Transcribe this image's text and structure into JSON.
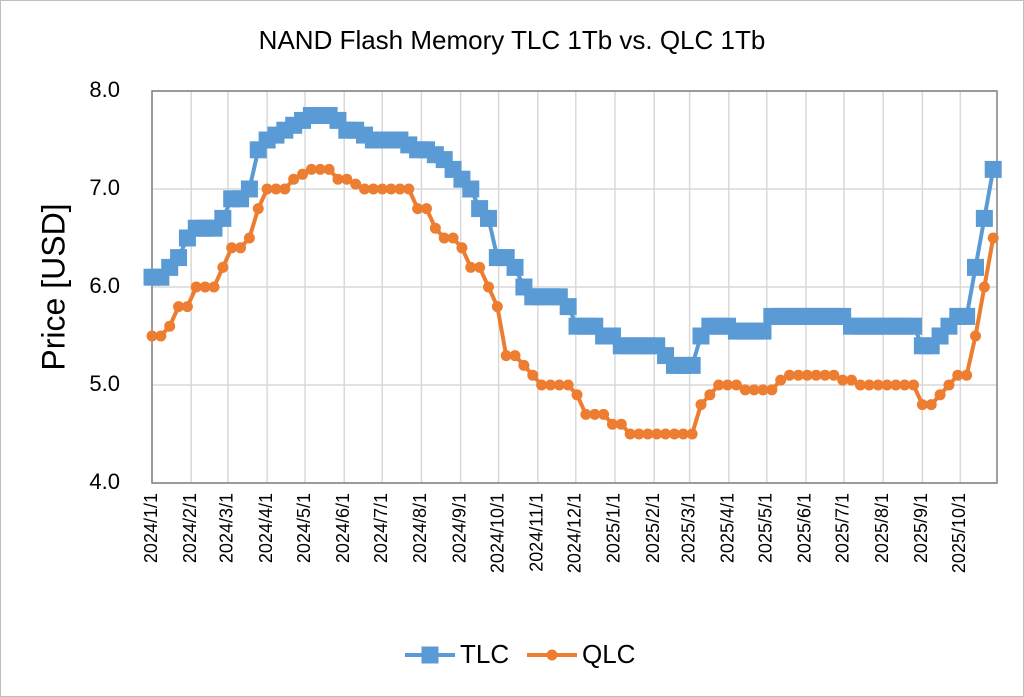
{
  "chart_data": {
    "type": "line",
    "title": "NAND Flash Memory TLC 1Tb vs. QLC 1Tb",
    "y_label": "Price [USD]",
    "x": [
      "2024/1/1",
      "2024/1/8",
      "2024/1/15",
      "2024/1/22",
      "2024/1/29",
      "2024/2/5",
      "2024/2/12",
      "2024/2/19",
      "2024/2/26",
      "2024/3/4",
      "2024/3/11",
      "2024/3/18",
      "2024/3/25",
      "2024/4/1",
      "2024/4/8",
      "2024/4/15",
      "2024/4/22",
      "2024/4/29",
      "2024/5/6",
      "2024/5/13",
      "2024/5/20",
      "2024/5/27",
      "2024/6/3",
      "2024/6/10",
      "2024/6/17",
      "2024/6/24",
      "2024/7/1",
      "2024/7/8",
      "2024/7/15",
      "2024/7/22",
      "2024/7/29",
      "2024/8/5",
      "2024/8/12",
      "2024/8/19",
      "2024/8/26",
      "2024/9/2",
      "2024/9/9",
      "2024/9/16",
      "2024/9/23",
      "2024/9/30",
      "2024/10/7",
      "2024/10/14",
      "2024/10/21",
      "2024/10/28",
      "2024/11/4",
      "2024/11/11",
      "2024/11/18",
      "2024/11/25",
      "2024/12/2",
      "2024/12/9",
      "2024/12/16",
      "2024/12/23",
      "2024/12/30",
      "2025/1/6",
      "2025/1/13",
      "2025/1/20",
      "2025/1/27",
      "2025/2/3",
      "2025/2/10",
      "2025/2/17",
      "2025/2/24",
      "2025/3/3",
      "2025/3/10",
      "2025/3/17",
      "2025/3/24",
      "2025/3/31",
      "2025/4/7",
      "2025/4/14",
      "2025/4/21",
      "2025/4/28",
      "2025/5/5",
      "2025/5/12",
      "2025/5/19",
      "2025/5/26",
      "2025/6/2",
      "2025/6/9",
      "2025/6/16",
      "2025/6/23",
      "2025/6/30",
      "2025/7/7",
      "2025/7/14",
      "2025/7/21",
      "2025/7/28",
      "2025/8/4",
      "2025/8/11",
      "2025/8/18",
      "2025/8/25",
      "2025/9/1",
      "2025/9/8",
      "2025/9/15",
      "2025/9/22",
      "2025/9/29",
      "2025/10/6",
      "2025/10/13",
      "2025/10/20",
      "2025/10/27"
    ],
    "series": [
      {
        "name": "TLC",
        "color": "#5b9bd5",
        "marker": "square",
        "values": [
          6.1,
          6.1,
          6.2,
          6.3,
          6.5,
          6.6,
          6.6,
          6.6,
          6.7,
          6.9,
          6.9,
          7.0,
          7.4,
          7.5,
          7.55,
          7.6,
          7.65,
          7.7,
          7.75,
          7.75,
          7.75,
          7.7,
          7.6,
          7.6,
          7.55,
          7.5,
          7.5,
          7.5,
          7.5,
          7.45,
          7.4,
          7.4,
          7.35,
          7.3,
          7.2,
          7.1,
          7.0,
          6.8,
          6.7,
          6.3,
          6.3,
          6.2,
          6.0,
          5.9,
          5.9,
          5.9,
          5.9,
          5.8,
          5.6,
          5.6,
          5.6,
          5.5,
          5.5,
          5.4,
          5.4,
          5.4,
          5.4,
          5.4,
          5.3,
          5.2,
          5.2,
          5.2,
          5.5,
          5.6,
          5.6,
          5.6,
          5.55,
          5.55,
          5.55,
          5.55,
          5.7,
          5.7,
          5.7,
          5.7,
          5.7,
          5.7,
          5.7,
          5.7,
          5.7,
          5.6,
          5.6,
          5.6,
          5.6,
          5.6,
          5.6,
          5.6,
          5.6,
          5.4,
          5.4,
          5.5,
          5.6,
          5.7,
          5.7,
          6.2,
          6.7,
          7.2
        ]
      },
      {
        "name": "QLC",
        "color": "#ed7d31",
        "marker": "circle",
        "values": [
          5.5,
          5.5,
          5.6,
          5.8,
          5.8,
          6.0,
          6.0,
          6.0,
          6.2,
          6.4,
          6.4,
          6.5,
          6.8,
          7.0,
          7.0,
          7.0,
          7.1,
          7.15,
          7.2,
          7.2,
          7.2,
          7.1,
          7.1,
          7.05,
          7.0,
          7.0,
          7.0,
          7.0,
          7.0,
          7.0,
          6.8,
          6.8,
          6.6,
          6.5,
          6.5,
          6.4,
          6.2,
          6.2,
          6.0,
          5.8,
          5.3,
          5.3,
          5.2,
          5.1,
          5.0,
          5.0,
          5.0,
          5.0,
          4.9,
          4.7,
          4.7,
          4.7,
          4.6,
          4.6,
          4.5,
          4.5,
          4.5,
          4.5,
          4.5,
          4.5,
          4.5,
          4.5,
          4.8,
          4.9,
          5.0,
          5.0,
          5.0,
          4.95,
          4.95,
          4.95,
          4.95,
          5.05,
          5.1,
          5.1,
          5.1,
          5.1,
          5.1,
          5.1,
          5.05,
          5.05,
          5.0,
          5.0,
          5.0,
          5.0,
          5.0,
          5.0,
          5.0,
          4.8,
          4.8,
          4.9,
          5.0,
          5.1,
          5.1,
          5.5,
          6.0,
          6.5
        ]
      }
    ],
    "xlim": [
      "2024/1/1",
      "2025/10/30"
    ],
    "xticks": [
      "2024/1/1",
      "2024/2/1",
      "2024/3/1",
      "2024/4/1",
      "2024/5/1",
      "2024/6/1",
      "2024/7/1",
      "2024/8/1",
      "2024/9/1",
      "2024/10/1",
      "2024/11/1",
      "2024/12/1",
      "2025/1/1",
      "2025/2/1",
      "2025/3/1",
      "2025/4/1",
      "2025/5/1",
      "2025/6/1",
      "2025/7/1",
      "2025/8/1",
      "2025/9/1",
      "2025/10/1"
    ],
    "ylim": [
      4,
      8
    ],
    "yticks": [
      {
        "value": 4,
        "label": "4.0"
      },
      {
        "value": 5,
        "label": "5.0"
      },
      {
        "value": 6,
        "label": "6.0"
      },
      {
        "value": 7,
        "label": "7.0"
      },
      {
        "value": 8,
        "label": "8.0"
      }
    ],
    "grid": true,
    "legend": "bottom"
  }
}
